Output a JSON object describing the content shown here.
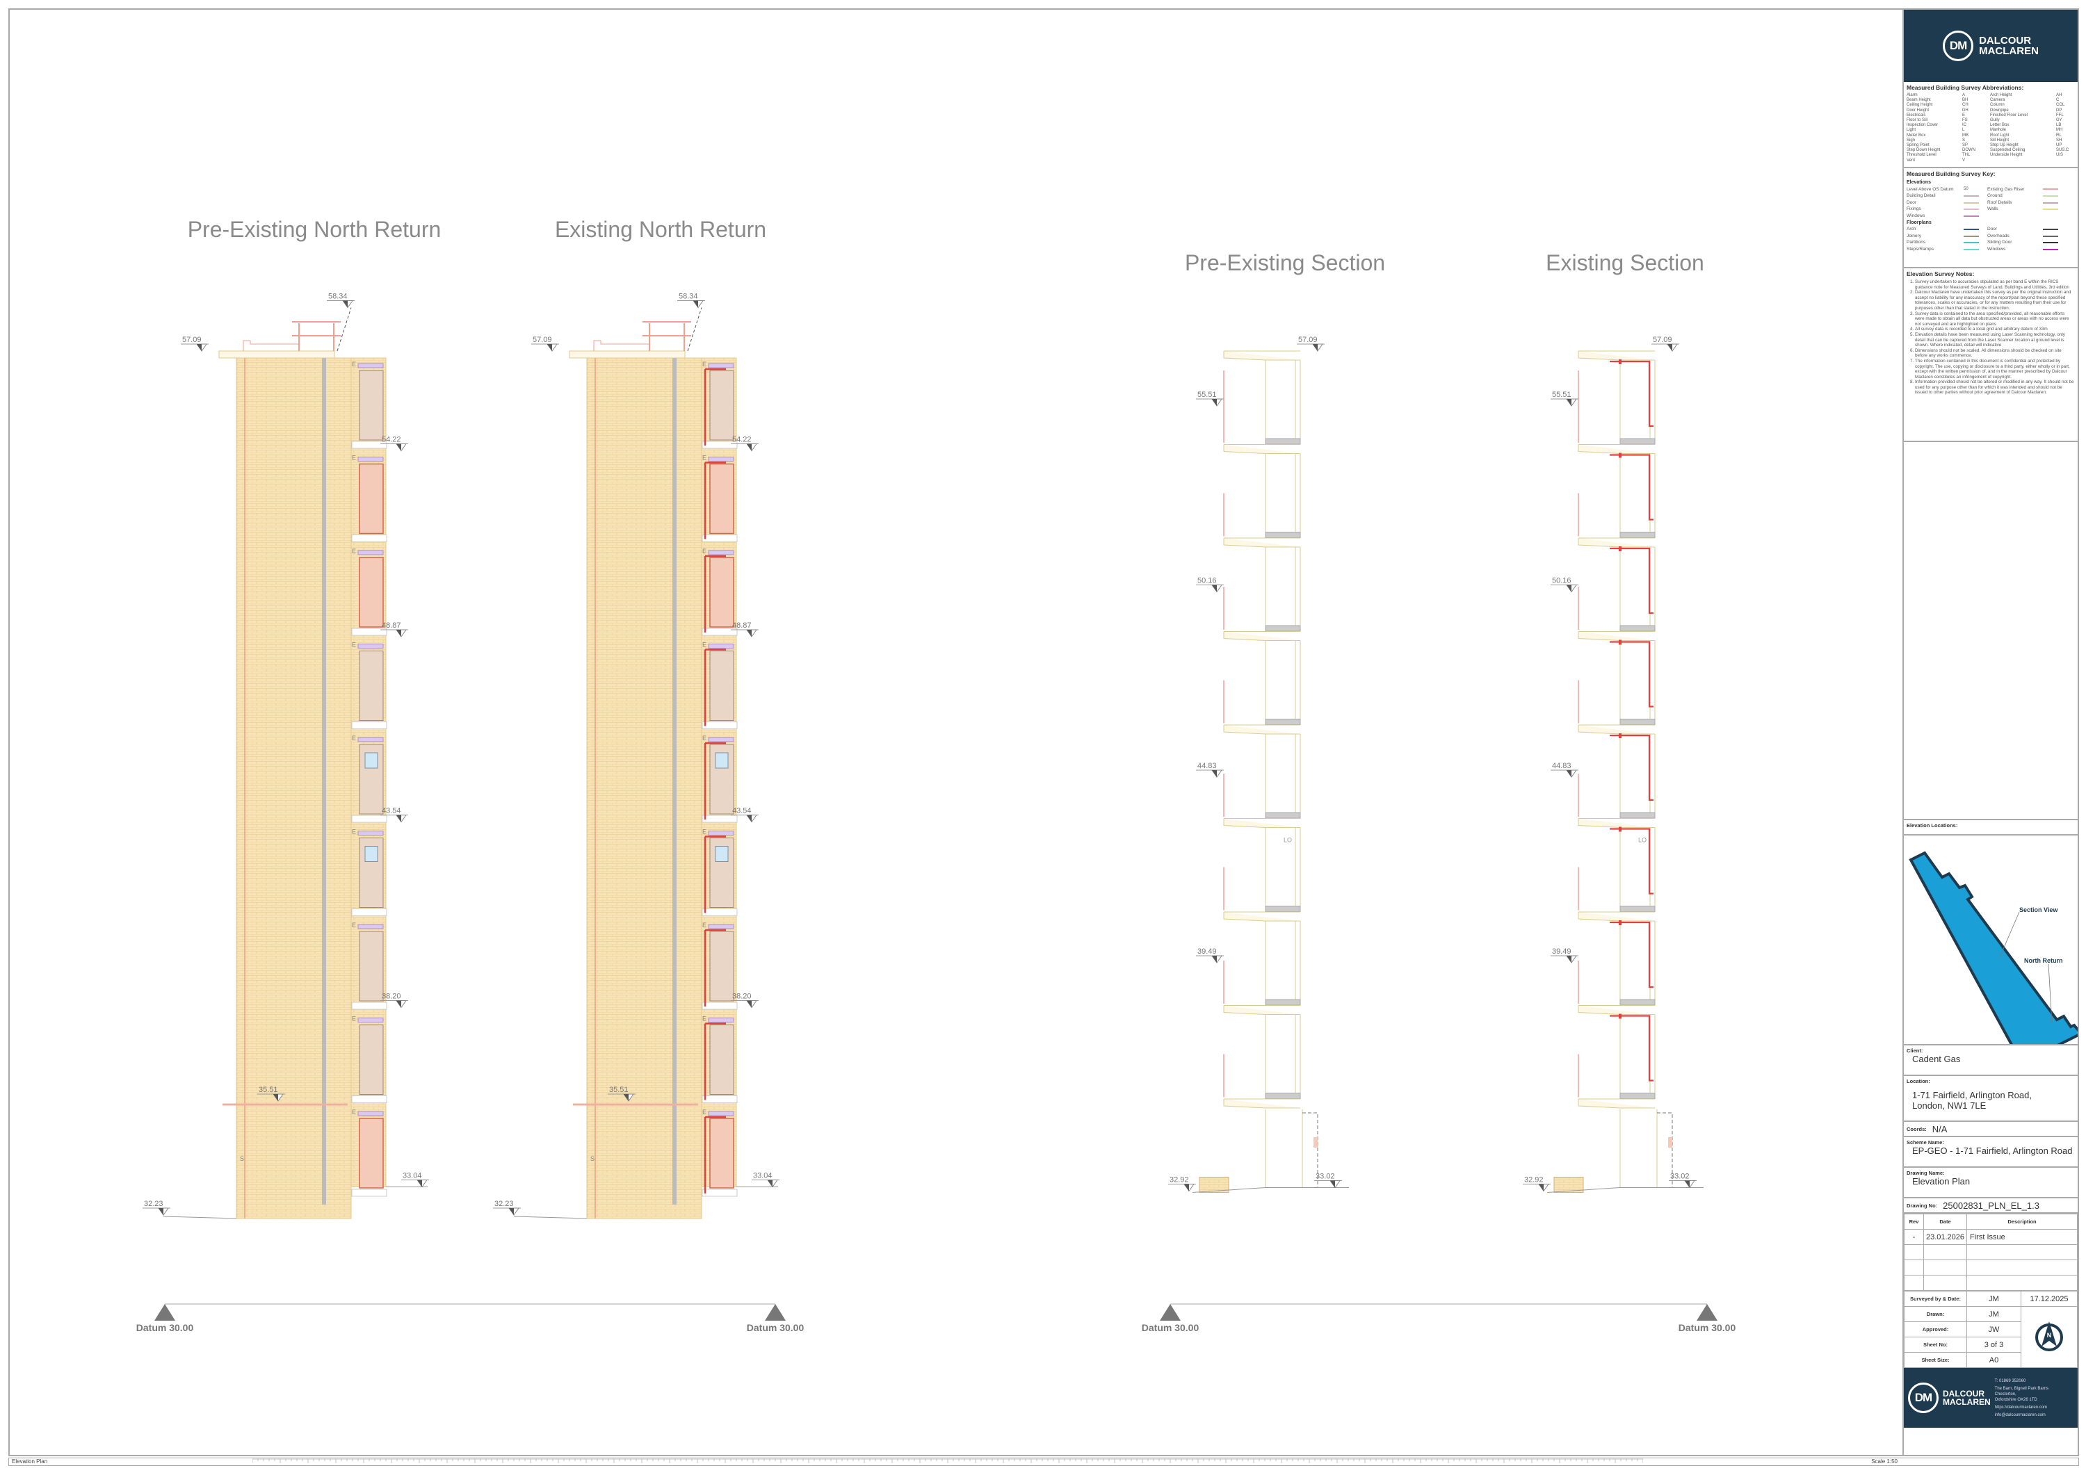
{
  "views": [
    {
      "title": "Pre-Existing North Return",
      "type": "elevation",
      "existing": false,
      "levels": [
        "58.34",
        "57.09",
        "54.22",
        "48.87",
        "43.54",
        "38.20",
        "35.51",
        "33.04",
        "32.23"
      ]
    },
    {
      "title": "Existing North Return",
      "type": "elevation",
      "existing": true,
      "levels": [
        "58.34",
        "57.09",
        "54.22",
        "48.87",
        "43.54",
        "38.20",
        "35.51",
        "33.04",
        "32.23"
      ]
    },
    {
      "title": "Pre-Existing Section",
      "type": "section",
      "existing": false,
      "levels": [
        "57.09",
        "55.51",
        "50.16",
        "44.83",
        "39.49",
        "32.92",
        "33.02"
      ],
      "light_label": "LO"
    },
    {
      "title": "Existing Section",
      "type": "section",
      "existing": true,
      "levels": [
        "57.09",
        "55.51",
        "50.16",
        "44.83",
        "39.49",
        "32.92",
        "33.02"
      ],
      "light_label": "LO"
    }
  ],
  "datum_label": "Datum 30.00",
  "elevation_tags": {
    "electricals": "E",
    "sign": "S"
  },
  "colors": {
    "brick": "#f7e3b5",
    "gas_riser": "#e0413e",
    "door": "#e9d6c6",
    "brand": "#1d3a4f",
    "building_blue": "#1a9fd6"
  },
  "titleblock": {
    "company_line1": "DALCOUR",
    "company_line2": "MACLAREN",
    "logo_letters": "DM",
    "abbr_title": "Measured Building Survey Abbreviations:",
    "abbreviations": [
      [
        "Alarm",
        "A",
        "Arch Height",
        "AH"
      ],
      [
        "Beam Height",
        "BH",
        "Camera",
        "C"
      ],
      [
        "Ceiling Height",
        "CH",
        "Column",
        "COL"
      ],
      [
        "Door Height",
        "DH",
        "Downpipe",
        "DP"
      ],
      [
        "Electricals",
        "E",
        "Finished Floor Level",
        "FFL"
      ],
      [
        "Floor to Sill",
        "FS",
        "Gully",
        "GY"
      ],
      [
        "Inspection Cover",
        "IC",
        "Letter Box",
        "LB"
      ],
      [
        "Light",
        "L",
        "Manhole",
        "MH"
      ],
      [
        "Meter Box",
        "MB",
        "Roof Light",
        "RL"
      ],
      [
        "Sign",
        "S",
        "Sill Height",
        "SH"
      ],
      [
        "Spring Point",
        "SP",
        "Step Up Height",
        "UP"
      ],
      [
        "Step Down Height",
        "DOWN",
        "Suspended Ceiling",
        "SUS.C"
      ],
      [
        "Threshold Level",
        "THL",
        "Underside Height",
        "U/S"
      ],
      [
        "Vent",
        "V",
        "",
        ""
      ]
    ],
    "key_title": "Measured Building Survey Key:",
    "key_elev_title": "Elevations",
    "key_level_sample": "50",
    "key_elevations": [
      [
        "Level Above OS Datum",
        "",
        "Existing Gas Riser",
        "#f0a0a8"
      ],
      [
        "Building Detail",
        "#c8b0b8",
        "Ground",
        "#c8e0b0"
      ],
      [
        "Door",
        "#d8c8a8",
        "Roof Details",
        "#c8a8a8"
      ],
      [
        "Fixings",
        "#e8b8c8",
        "Walls",
        "#e8e088"
      ],
      [
        "Windows",
        "#c080c0",
        "",
        ""
      ]
    ],
    "key_floor_title": "Floorplans",
    "key_floorplans": [
      [
        "Arch",
        "#3050a0",
        "Door",
        "#444"
      ],
      [
        "Joinery",
        "#a09080",
        "Overheads",
        "#666"
      ],
      [
        "Partitions",
        "#40c8c8",
        "Sliding Door",
        "#333"
      ],
      [
        "Steps/Ramps",
        "#60d8d8",
        "Windows",
        "#c020c0"
      ]
    ],
    "notes_title": "Elevation Survey Notes:",
    "notes": [
      "Survey undertaken to accuracies stipulated as per band E within the RICS guidance note for Measured Surveys of Land, Buildings and Utilities, 3rd edition",
      "Dalcour Maclaren have undertaken this survey as per the original instruction and accept no liability for any inaccuracy of the report/plan beyond these specified tolerances, scales or accuracies, or for any matters resulting from their use for purposes other than that stated in the instruction.",
      "Survey data is contained to the area specified/provided, all reasonable efforts were made to obtain all data but obstructed areas or areas with no access were not surveyed and are highlighted on plans",
      "All survey data is recorded to a local grid and arbitrary datum of 33m",
      "Elevation details have been measured using Laser Scanning technology, only detail that can be captured from the Laser Scanner location at ground level is shown. Where indicated, detail will indicative",
      "Dimensions should not be scaled. All dimensions should be checked on site before any works commence.",
      "The information contained in this document is confidential and protected by copyright. The use, copying or disclosure to a third party, either wholly or in part, except with the written permission of, and in the manner prescribed by Dalcour Maclaren constitutes an infringement of copyright.",
      "Information provided should not be altered or modified in any way. It should not be used for any purpose other than for which it was intended and should not be issued to other parties without prior agreement of Dalcour Maclaren."
    ],
    "locations_title": "Elevation Locations:",
    "loc_section": "Section View",
    "loc_north": "North Return",
    "client_label": "Client:",
    "client": "Cadent Gas",
    "location_label": "Location:",
    "location_l1": "1-71 Fairfield, Arlington Road,",
    "location_l2": "London, NW1 7LE",
    "coords_label": "Coords:",
    "coords": "N/A",
    "scheme_label": "Scheme Name:",
    "scheme": "EP-GEO - 1-71 Fairfield, Arlington Road",
    "drawing_name_label": "Drawing Name:",
    "drawing_name": "Elevation Plan",
    "drawing_no_label": "Drawing No:",
    "drawing_no": "25002831_PLN_EL_1.3",
    "rev_headers": [
      "Rev",
      "Date",
      "Description"
    ],
    "revisions": [
      [
        "-",
        "23.01.2026",
        "First Issue"
      ]
    ],
    "surveyed_label": "Surveyed by & Date:",
    "surveyed_by": "JM",
    "surveyed_date": "17.12.2025",
    "drawn_label": "Drawn:",
    "drawn": "JM",
    "approved_label": "Approved:",
    "approved": "JW",
    "sheet_no_label": "Sheet No:",
    "sheet_no": "3 of 3",
    "sheet_size_label": "Sheet Size:",
    "sheet_size": "A0",
    "north_letter": "N",
    "phone": "T: 01869 352060",
    "addr1": "The Barn, Bignell Park Barns",
    "addr2": "Chesterton,",
    "addr3": "Oxfordshire OX26 1TD",
    "web": "https://dalcourmaclaren.com",
    "email": "info@dalcourmaclaren.com"
  },
  "footer": {
    "drawing_name": "Elevation Plan",
    "scale": "Scale 1:50"
  }
}
